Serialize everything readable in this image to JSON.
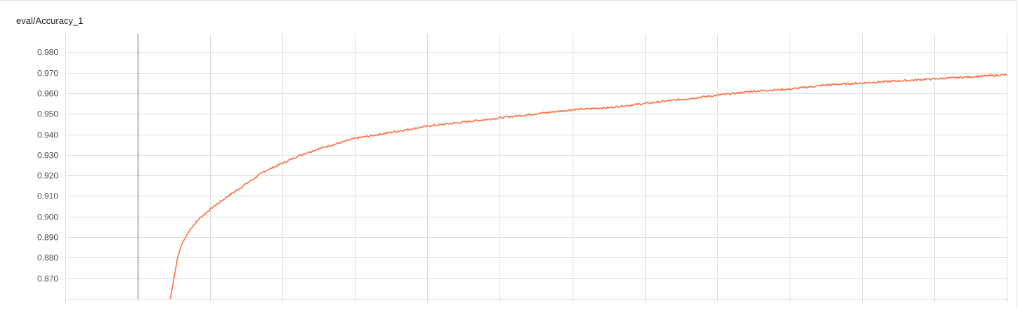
{
  "card": {
    "title": "eval/Accuracy_1"
  },
  "colors": {
    "series": "#ff7043",
    "grid": "#dddddd",
    "step_marker": "#999999",
    "text": "#555555"
  },
  "chart_data": {
    "type": "line",
    "title": "eval/Accuracy_1",
    "xlabel": "",
    "ylabel": "",
    "ylim": [
      0.86,
      0.989
    ],
    "xlim": [
      0,
      26
    ],
    "yticks": [
      "0.870",
      "0.880",
      "0.890",
      "0.900",
      "0.910",
      "0.920",
      "0.930",
      "0.940",
      "0.950",
      "0.960",
      "0.970",
      "0.980"
    ],
    "ytick_values": [
      0.87,
      0.88,
      0.89,
      0.9,
      0.91,
      0.92,
      0.93,
      0.94,
      0.95,
      0.96,
      0.97,
      0.98
    ],
    "xticks_labeled": false,
    "x_gridlines": [
      0,
      2,
      4,
      6,
      8,
      10,
      12,
      14,
      16,
      18,
      20,
      22,
      24,
      26
    ],
    "step_marker_x": 2,
    "grid": true,
    "series": [
      {
        "x": [
          2.9,
          3.0,
          3.1,
          3.2,
          3.35,
          3.5,
          3.7,
          3.9,
          4.1,
          4.5,
          5.0,
          5.5,
          6.0,
          6.5,
          7.0,
          8.0,
          9.0,
          10.0,
          11.0,
          12.0,
          13.0,
          14.0,
          15.0,
          16.0,
          17.0,
          18.0,
          19.0,
          20.0,
          21.0,
          22.0,
          23.0,
          24.0,
          25.0,
          26.0
        ],
        "y": [
          0.86,
          0.87,
          0.88,
          0.886,
          0.891,
          0.895,
          0.899,
          0.902,
          0.905,
          0.91,
          0.916,
          0.922,
          0.926,
          0.93,
          0.933,
          0.938,
          0.941,
          0.944,
          0.946,
          0.948,
          0.95,
          0.952,
          0.953,
          0.955,
          0.957,
          0.959,
          0.961,
          0.962,
          0.964,
          0.965,
          0.966,
          0.967,
          0.968,
          0.969
        ]
      }
    ]
  }
}
